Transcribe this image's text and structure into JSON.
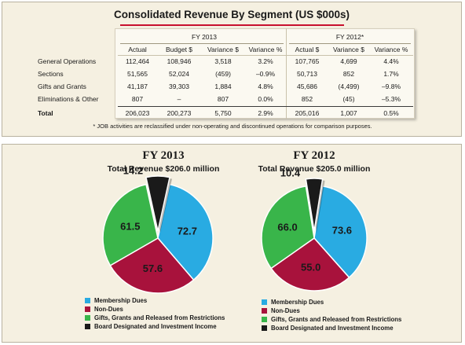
{
  "table": {
    "title": "Consolidated Revenue By Segment (US $000s)",
    "group_fy2013": "FY 2013",
    "group_fy2012": "FY 2012*",
    "columns": [
      "Actual",
      "Budget $",
      "Variance $",
      "Variance %",
      "Actual $",
      "Variance $",
      "Variance %"
    ],
    "rows": [
      {
        "label": "General Operations",
        "cells": [
          "112,464",
          "108,946",
          "3,518",
          "3.2%",
          "107,765",
          "4,699",
          "4.4%"
        ]
      },
      {
        "label": "Sections",
        "cells": [
          "51,565",
          "52,024",
          "(459)",
          "–0.9%",
          "50,713",
          "852",
          "1.7%"
        ]
      },
      {
        "label": "Gifts and Grants",
        "cells": [
          "41,187",
          "39,303",
          "1,884",
          "4.8%",
          "45,686",
          "(4,499)",
          "–9.8%"
        ]
      },
      {
        "label": "Eliminations & Other",
        "cells": [
          "807",
          "–",
          "807",
          "0.0%",
          "852",
          "(45)",
          "–5.3%"
        ]
      },
      {
        "label": "Total",
        "cells": [
          "206,023",
          "200,273",
          "5,750",
          "2.9%",
          "205,016",
          "1,007",
          "0.5%"
        ]
      }
    ],
    "footnote": "* JOB activities are reclassified under non-operating and discontinued operations for comparison purposes."
  },
  "colors": {
    "membership": "#29abe2",
    "non_dues": "#a8123c",
    "gifts": "#39b54a",
    "board": "#1a1a1a",
    "title_rule": "#c8102e"
  },
  "chart_data": [
    {
      "type": "pie",
      "title": "FY 2013",
      "subtitle": "Total Revenue $206.0 million",
      "labels": [
        "Membership Dues",
        "Non-Dues",
        "Gifts, Grants and Released from Restrictions",
        "Board Designated and Investment Income"
      ],
      "values": [
        72.7,
        57.6,
        61.5,
        14.2
      ],
      "exploded": "Board Designated and Investment Income",
      "legend_position": "bottom-left"
    },
    {
      "type": "pie",
      "title": "FY 2012",
      "subtitle": "Total Revenue $205.0 million",
      "labels": [
        "Membership Dues",
        "Non-Dues",
        "Gifts, Grants and Released from Restrictions",
        "Board Designated and Investment Income"
      ],
      "values": [
        73.6,
        55.0,
        66.0,
        10.4
      ],
      "exploded": "Board Designated and Investment Income",
      "legend_position": "bottom-left"
    }
  ]
}
